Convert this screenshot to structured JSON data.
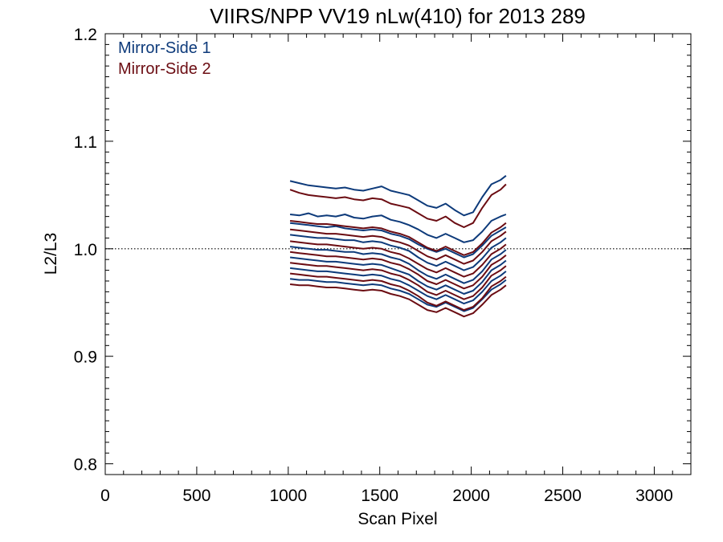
{
  "chart_data": {
    "type": "line",
    "title": "VIIRS/NPP VV19 nLw(410) for 2013 289",
    "xlabel": "Scan Pixel",
    "ylabel": "L2/L3",
    "xlim": [
      0,
      3200
    ],
    "ylim": [
      0.79,
      1.2
    ],
    "xticks": [
      0,
      500,
      1000,
      1500,
      2000,
      2500,
      3000
    ],
    "yticks": [
      0.8,
      0.9,
      1.0,
      1.1,
      1.2
    ],
    "xtick_labels": [
      "0",
      "500",
      "1000",
      "1500",
      "2000",
      "2500",
      "3000"
    ],
    "ytick_labels": [
      "0.8",
      "0.9",
      "1.0",
      "1.1",
      "1.2"
    ],
    "reference_line": {
      "y": 1.0,
      "style": "dotted"
    },
    "legend": {
      "placement": "top-left"
    },
    "x": [
      1010,
      1060,
      1110,
      1160,
      1210,
      1260,
      1310,
      1360,
      1410,
      1460,
      1510,
      1560,
      1610,
      1660,
      1710,
      1760,
      1810,
      1860,
      1910,
      1960,
      2010,
      2060,
      2110,
      2160,
      2190
    ],
    "series": [
      {
        "name": "Mirror-Side 1",
        "color": "#0d3a7a",
        "lines": [
          [
            1.063,
            1.061,
            1.059,
            1.058,
            1.057,
            1.056,
            1.057,
            1.055,
            1.054,
            1.056,
            1.058,
            1.054,
            1.052,
            1.05,
            1.045,
            1.04,
            1.038,
            1.042,
            1.036,
            1.031,
            1.034,
            1.048,
            1.06,
            1.064,
            1.068
          ],
          [
            1.032,
            1.031,
            1.033,
            1.03,
            1.031,
            1.03,
            1.032,
            1.029,
            1.028,
            1.03,
            1.031,
            1.027,
            1.025,
            1.022,
            1.018,
            1.013,
            1.01,
            1.014,
            1.01,
            1.006,
            1.008,
            1.016,
            1.026,
            1.03,
            1.032
          ],
          [
            1.024,
            1.023,
            1.022,
            1.021,
            1.02,
            1.021,
            1.019,
            1.018,
            1.017,
            1.018,
            1.017,
            1.014,
            1.012,
            1.009,
            1.004,
            1.0,
            0.997,
            1.0,
            0.996,
            0.992,
            0.995,
            1.003,
            1.012,
            1.017,
            1.02
          ],
          [
            1.013,
            1.012,
            1.011,
            1.01,
            1.01,
            1.009,
            1.008,
            1.008,
            1.006,
            1.007,
            1.006,
            1.003,
            1.001,
            0.998,
            0.992,
            0.987,
            0.984,
            0.988,
            0.984,
            0.98,
            0.983,
            0.991,
            1.001,
            1.006,
            1.01
          ],
          [
            1.002,
            1.001,
            1.0,
            0.999,
            0.999,
            0.998,
            0.997,
            0.997,
            0.995,
            0.996,
            0.995,
            0.992,
            0.99,
            0.986,
            0.98,
            0.975,
            0.972,
            0.976,
            0.972,
            0.968,
            0.971,
            0.979,
            0.99,
            0.995,
            0.999
          ],
          [
            0.992,
            0.991,
            0.99,
            0.989,
            0.988,
            0.988,
            0.987,
            0.986,
            0.985,
            0.986,
            0.985,
            0.982,
            0.979,
            0.976,
            0.97,
            0.965,
            0.962,
            0.966,
            0.962,
            0.958,
            0.961,
            0.969,
            0.98,
            0.985,
            0.989
          ],
          [
            0.982,
            0.981,
            0.98,
            0.979,
            0.979,
            0.978,
            0.977,
            0.976,
            0.975,
            0.976,
            0.975,
            0.972,
            0.97,
            0.966,
            0.961,
            0.956,
            0.953,
            0.957,
            0.953,
            0.949,
            0.952,
            0.96,
            0.97,
            0.975,
            0.979
          ],
          [
            0.972,
            0.971,
            0.971,
            0.97,
            0.969,
            0.969,
            0.968,
            0.967,
            0.966,
            0.967,
            0.966,
            0.963,
            0.961,
            0.958,
            0.953,
            0.948,
            0.946,
            0.95,
            0.946,
            0.942,
            0.945,
            0.953,
            0.962,
            0.967,
            0.971
          ]
        ]
      },
      {
        "name": "Mirror-Side 2",
        "color": "#6b0c12",
        "lines": [
          [
            1.055,
            1.052,
            1.05,
            1.049,
            1.048,
            1.047,
            1.048,
            1.046,
            1.045,
            1.047,
            1.046,
            1.042,
            1.04,
            1.038,
            1.033,
            1.028,
            1.026,
            1.03,
            1.024,
            1.02,
            1.024,
            1.038,
            1.05,
            1.055,
            1.06
          ],
          [
            1.026,
            1.025,
            1.024,
            1.023,
            1.023,
            1.022,
            1.021,
            1.02,
            1.019,
            1.02,
            1.019,
            1.016,
            1.014,
            1.011,
            1.006,
            1.001,
            0.998,
            1.002,
            0.998,
            0.994,
            0.997,
            1.005,
            1.015,
            1.02,
            1.024
          ],
          [
            1.018,
            1.017,
            1.016,
            1.015,
            1.014,
            1.014,
            1.013,
            1.012,
            1.011,
            1.012,
            1.011,
            1.008,
            1.006,
            1.003,
            0.998,
            0.993,
            0.99,
            0.994,
            0.99,
            0.986,
            0.989,
            0.997,
            1.007,
            1.012,
            1.016
          ],
          [
            1.007,
            1.006,
            1.005,
            1.004,
            1.004,
            1.003,
            1.002,
            1.001,
            1.0,
            1.001,
            1.0,
            0.997,
            0.995,
            0.991,
            0.986,
            0.981,
            0.978,
            0.982,
            0.978,
            0.974,
            0.977,
            0.985,
            0.995,
            1.0,
            1.004
          ],
          [
            0.997,
            0.996,
            0.995,
            0.994,
            0.993,
            0.993,
            0.992,
            0.991,
            0.99,
            0.991,
            0.99,
            0.987,
            0.985,
            0.981,
            0.976,
            0.97,
            0.967,
            0.971,
            0.967,
            0.963,
            0.966,
            0.974,
            0.985,
            0.99,
            0.994
          ],
          [
            0.987,
            0.986,
            0.985,
            0.984,
            0.984,
            0.983,
            0.982,
            0.981,
            0.98,
            0.981,
            0.98,
            0.977,
            0.975,
            0.971,
            0.966,
            0.96,
            0.957,
            0.961,
            0.957,
            0.953,
            0.956,
            0.964,
            0.975,
            0.98,
            0.984
          ],
          [
            0.977,
            0.976,
            0.975,
            0.974,
            0.974,
            0.973,
            0.972,
            0.971,
            0.97,
            0.971,
            0.97,
            0.967,
            0.965,
            0.961,
            0.956,
            0.95,
            0.947,
            0.951,
            0.947,
            0.943,
            0.946,
            0.954,
            0.965,
            0.97,
            0.974
          ],
          [
            0.967,
            0.966,
            0.966,
            0.965,
            0.964,
            0.964,
            0.963,
            0.962,
            0.961,
            0.962,
            0.961,
            0.958,
            0.956,
            0.953,
            0.948,
            0.943,
            0.941,
            0.945,
            0.941,
            0.937,
            0.94,
            0.948,
            0.957,
            0.962,
            0.966
          ]
        ]
      }
    ]
  }
}
